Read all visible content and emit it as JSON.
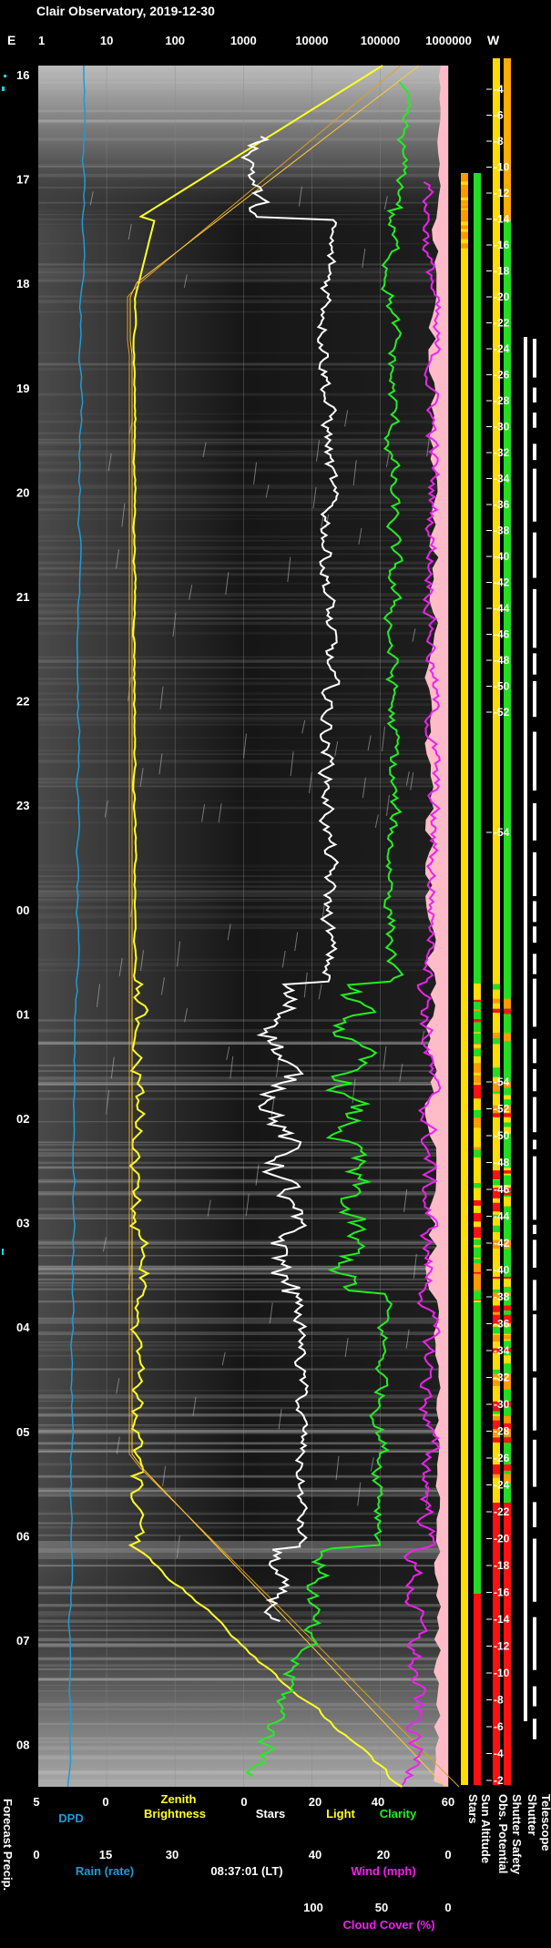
{
  "chart_data": {
    "type": "line",
    "title": "Clair Observatory, 2019-12-30",
    "left_label": "E",
    "right_label": "W",
    "x_scale": "log",
    "x_ticks": [
      "1",
      "10",
      "100",
      "1000",
      "10000",
      "100000",
      "1000000"
    ],
    "time_ticks": [
      "16",
      "17",
      "18",
      "19",
      "20",
      "21",
      "22",
      "23",
      "00",
      "01",
      "02",
      "03",
      "04",
      "05",
      "06",
      "07",
      "08"
    ],
    "sun_altitude_ticks": [
      "-4",
      "-6",
      "-8",
      "-10",
      "-12",
      "-14",
      "-16",
      "-18",
      "-20",
      "-22",
      "-24",
      "-26",
      "-28",
      "-30",
      "-32",
      "-34",
      "-36",
      "-38",
      "-40",
      "-42",
      "-44",
      "-46",
      "-48",
      "-50",
      "-52",
      "-54",
      "-54",
      "-52",
      "-50",
      "-48",
      "-46",
      "-44",
      "-42",
      "-40",
      "-38",
      "-36",
      "-34",
      "-32",
      "-30",
      "-28",
      "-26",
      "-24",
      "-22",
      "-20",
      "-18",
      "-16",
      "-14",
      "-12",
      "-10",
      "-8",
      "-6",
      "-4",
      "-2"
    ],
    "right_columns": [
      "Stars",
      "Sun Altitude",
      "Obs. Potential",
      "Shutter Safety",
      "Shutter",
      "Telescope"
    ],
    "bottom_axes": {
      "dpd": {
        "label": "DPD",
        "ticks": [
          "5",
          "0"
        ]
      },
      "zenith_label_1": "Zenith",
      "zenith_label_2": "Brightness",
      "zenith_ticks": [
        "0",
        "20"
      ],
      "stars": {
        "label": "Stars",
        "ticks": [
          "0",
          "20",
          "40",
          "60"
        ]
      },
      "light": {
        "label": "Light"
      },
      "clarity": {
        "label": "Clarity"
      },
      "rain": {
        "label": "Rain (rate)",
        "ticks": [
          "0",
          "15",
          "30"
        ]
      },
      "timestamp": "08:37:01 (LT)",
      "wind": {
        "label": "Wind (mph)",
        "ticks": [
          "40",
          "20",
          "0"
        ]
      },
      "cloud": {
        "label": "Cloud Cover (%)",
        "ticks": [
          "100",
          "50",
          "0"
        ]
      },
      "forecast": "Forecast Precip."
    },
    "series": [
      {
        "name": "DPD",
        "color": "#1e9bd7"
      },
      {
        "name": "Zenith Brightness",
        "color": "#ffff22"
      },
      {
        "name": "Stars",
        "color": "#ffffff"
      },
      {
        "name": "Light",
        "color": "#ffff22"
      },
      {
        "name": "Clarity",
        "color": "#22ee22"
      },
      {
        "name": "Cloud Cover (%)",
        "color": "#ee22ee"
      }
    ]
  }
}
